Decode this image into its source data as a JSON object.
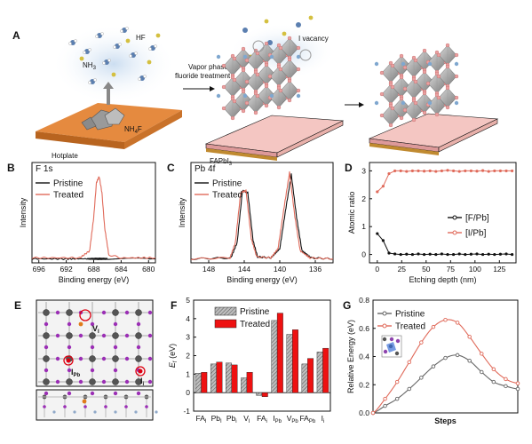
{
  "panels": {
    "A": "A",
    "B": "B",
    "C": "C",
    "D": "D",
    "E": "E",
    "F": "F",
    "G": "G"
  },
  "schematic": {
    "hf": "HF",
    "nh3": "NH",
    "nh3_sub": "3",
    "nh4f": "NH",
    "nh4f_sub": "4",
    "nh4f_end": "F",
    "hotplate": "Hotplate",
    "treatment_line1": "Vapor phase",
    "treatment_line2": "fluoride treatment",
    "i_vacancy": "I vacancy",
    "faPbI3": "FAPbI",
    "faPbI3_sub": "3"
  },
  "panel_e": {
    "v_label": "V",
    "v_sub": "I",
    "ipb_label": "I",
    "ipb_sub": "Pb",
    "ii_label": "I",
    "ii_sub": "i"
  },
  "chart_data": [
    {
      "id": "B",
      "type": "line",
      "title": "F 1s",
      "xlabel": "Binding energy (eV)",
      "ylabel": "Intensity",
      "xlim": [
        697,
        679
      ],
      "xticks": [
        696,
        692,
        688,
        684,
        680
      ],
      "series": [
        {
          "name": "Pristine",
          "color": "#111111",
          "x": [
            697,
            692,
            689,
            688,
            687,
            686,
            684,
            680,
            679
          ],
          "y": [
            0.04,
            0.04,
            0.04,
            0.04,
            0.04,
            0.04,
            0.04,
            0.04,
            0.04
          ]
        },
        {
          "name": "Treated",
          "color": "#e06a5a",
          "x": [
            697,
            690,
            688.6,
            688,
            687.6,
            687.2,
            686.8,
            686.4,
            685.8,
            684,
            679
          ],
          "y": [
            0.05,
            0.05,
            0.12,
            0.45,
            0.8,
            0.86,
            0.7,
            0.35,
            0.08,
            0.05,
            0.05
          ]
        }
      ]
    },
    {
      "id": "C",
      "type": "line",
      "title": "Pb 4f",
      "xlabel": "Binding energy (eV)",
      "ylabel": "Intensity",
      "xlim": [
        150,
        134
      ],
      "xticks": [
        148,
        144,
        140,
        136
      ],
      "series": [
        {
          "name": "Pristine",
          "color": "#111111",
          "x": [
            150,
            145.5,
            144.8,
            144.2,
            143.6,
            143,
            142.5,
            141,
            140,
            139.3,
            138.7,
            138.1,
            137.5,
            136.5,
            134
          ],
          "y": [
            0.04,
            0.05,
            0.2,
            0.72,
            0.7,
            0.22,
            0.06,
            0.05,
            0.14,
            0.55,
            0.88,
            0.45,
            0.12,
            0.05,
            0.04
          ]
        },
        {
          "name": "Treated",
          "color": "#e06a5a",
          "x": [
            150,
            145.6,
            145,
            144.4,
            143.8,
            143.2,
            142.6,
            141,
            140.2,
            139.5,
            138.9,
            138.3,
            137.7,
            136.6,
            134
          ],
          "y": [
            0.04,
            0.05,
            0.2,
            0.7,
            0.72,
            0.24,
            0.06,
            0.05,
            0.14,
            0.56,
            0.9,
            0.46,
            0.12,
            0.05,
            0.04
          ]
        }
      ]
    },
    {
      "id": "D",
      "type": "line",
      "xlabel": "Etching depth (nm)",
      "ylabel": "Atomic ratio",
      "xlim": [
        -8,
        142
      ],
      "ylim": [
        -0.3,
        3.3
      ],
      "xticks": [
        0,
        25,
        50,
        75,
        100,
        125
      ],
      "yticks": [
        0,
        1,
        2,
        3
      ],
      "series": [
        {
          "name": "[F/Pb]",
          "color": "#111111",
          "x": [
            0,
            6,
            12,
            18,
            24,
            30,
            36,
            42,
            48,
            54,
            60,
            66,
            72,
            78,
            84,
            90,
            96,
            102,
            108,
            114,
            120,
            126,
            132,
            138
          ],
          "y": [
            0.75,
            0.5,
            0.05,
            0.02,
            0.0,
            0.01,
            0.0,
            0.02,
            0.0,
            0.01,
            0.0,
            0.02,
            0.0,
            0.0,
            0.02,
            0.0,
            0.01,
            0.02,
            0.0,
            0.01,
            0.0,
            0.01,
            0.02,
            0.0
          ]
        },
        {
          "name": "[I/Pb]",
          "color": "#e06a5a",
          "x": [
            0,
            6,
            12,
            18,
            24,
            30,
            36,
            42,
            48,
            54,
            60,
            66,
            72,
            78,
            84,
            90,
            96,
            102,
            108,
            114,
            120,
            126,
            132,
            138
          ],
          "y": [
            2.25,
            2.45,
            2.9,
            3.0,
            3.0,
            2.98,
            3.0,
            3.0,
            2.99,
            3.0,
            2.98,
            3.0,
            3.02,
            3.0,
            2.98,
            3.0,
            3.0,
            2.99,
            3.01,
            2.98,
            3.0,
            3.0,
            3.0,
            3.0
          ]
        }
      ]
    },
    {
      "id": "F",
      "type": "bar",
      "ylabel": "E",
      "ylabel_sub": "f",
      "ylabel_end": " (eV)",
      "ylim": [
        -1,
        5
      ],
      "yticks": [
        -1,
        0,
        1,
        2,
        3,
        4,
        5
      ],
      "categories": [
        {
          "main": "FA",
          "sub": "I"
        },
        {
          "main": "Pb",
          "sub": "I"
        },
        {
          "main": "Pb",
          "sub": "i"
        },
        {
          "main": "V",
          "sub": "I"
        },
        {
          "main": "FA",
          "sub": "i"
        },
        {
          "main": "I",
          "sub": "Pb"
        },
        {
          "main": "V",
          "sub": "Pb"
        },
        {
          "main": "FA",
          "sub": "Pb"
        },
        {
          "main": "I",
          "sub": "i"
        }
      ],
      "series": [
        {
          "name": "Pristine",
          "color": "#9a9a9a",
          "values": [
            1.05,
            1.55,
            1.6,
            0.8,
            -0.15,
            3.9,
            3.15,
            1.55,
            2.2
          ]
        },
        {
          "name": "Treated",
          "color": "#ee1111",
          "values": [
            1.1,
            1.65,
            1.5,
            1.1,
            -0.22,
            4.3,
            3.4,
            1.85,
            2.4
          ]
        }
      ]
    },
    {
      "id": "G",
      "type": "line",
      "xlabel": "Steps",
      "ylabel": "Relative Energy (eV)",
      "ylim": [
        0,
        0.8
      ],
      "yticks": [
        0.0,
        0.2,
        0.4,
        0.6,
        0.8
      ],
      "series": [
        {
          "name": "Pristine",
          "color": "#666666",
          "x": [
            0,
            1,
            2,
            3,
            4,
            5,
            6,
            7,
            8,
            9,
            10,
            11,
            12
          ],
          "y": [
            0.0,
            0.05,
            0.1,
            0.17,
            0.25,
            0.33,
            0.39,
            0.41,
            0.37,
            0.29,
            0.22,
            0.19,
            0.17
          ]
        },
        {
          "name": "Treated",
          "color": "#e06a5a",
          "x": [
            0,
            1,
            2,
            3,
            4,
            5,
            6,
            7,
            8,
            9,
            10,
            11,
            12
          ],
          "y": [
            0.0,
            0.1,
            0.22,
            0.36,
            0.5,
            0.61,
            0.66,
            0.64,
            0.54,
            0.42,
            0.31,
            0.24,
            0.21
          ]
        }
      ]
    }
  ]
}
